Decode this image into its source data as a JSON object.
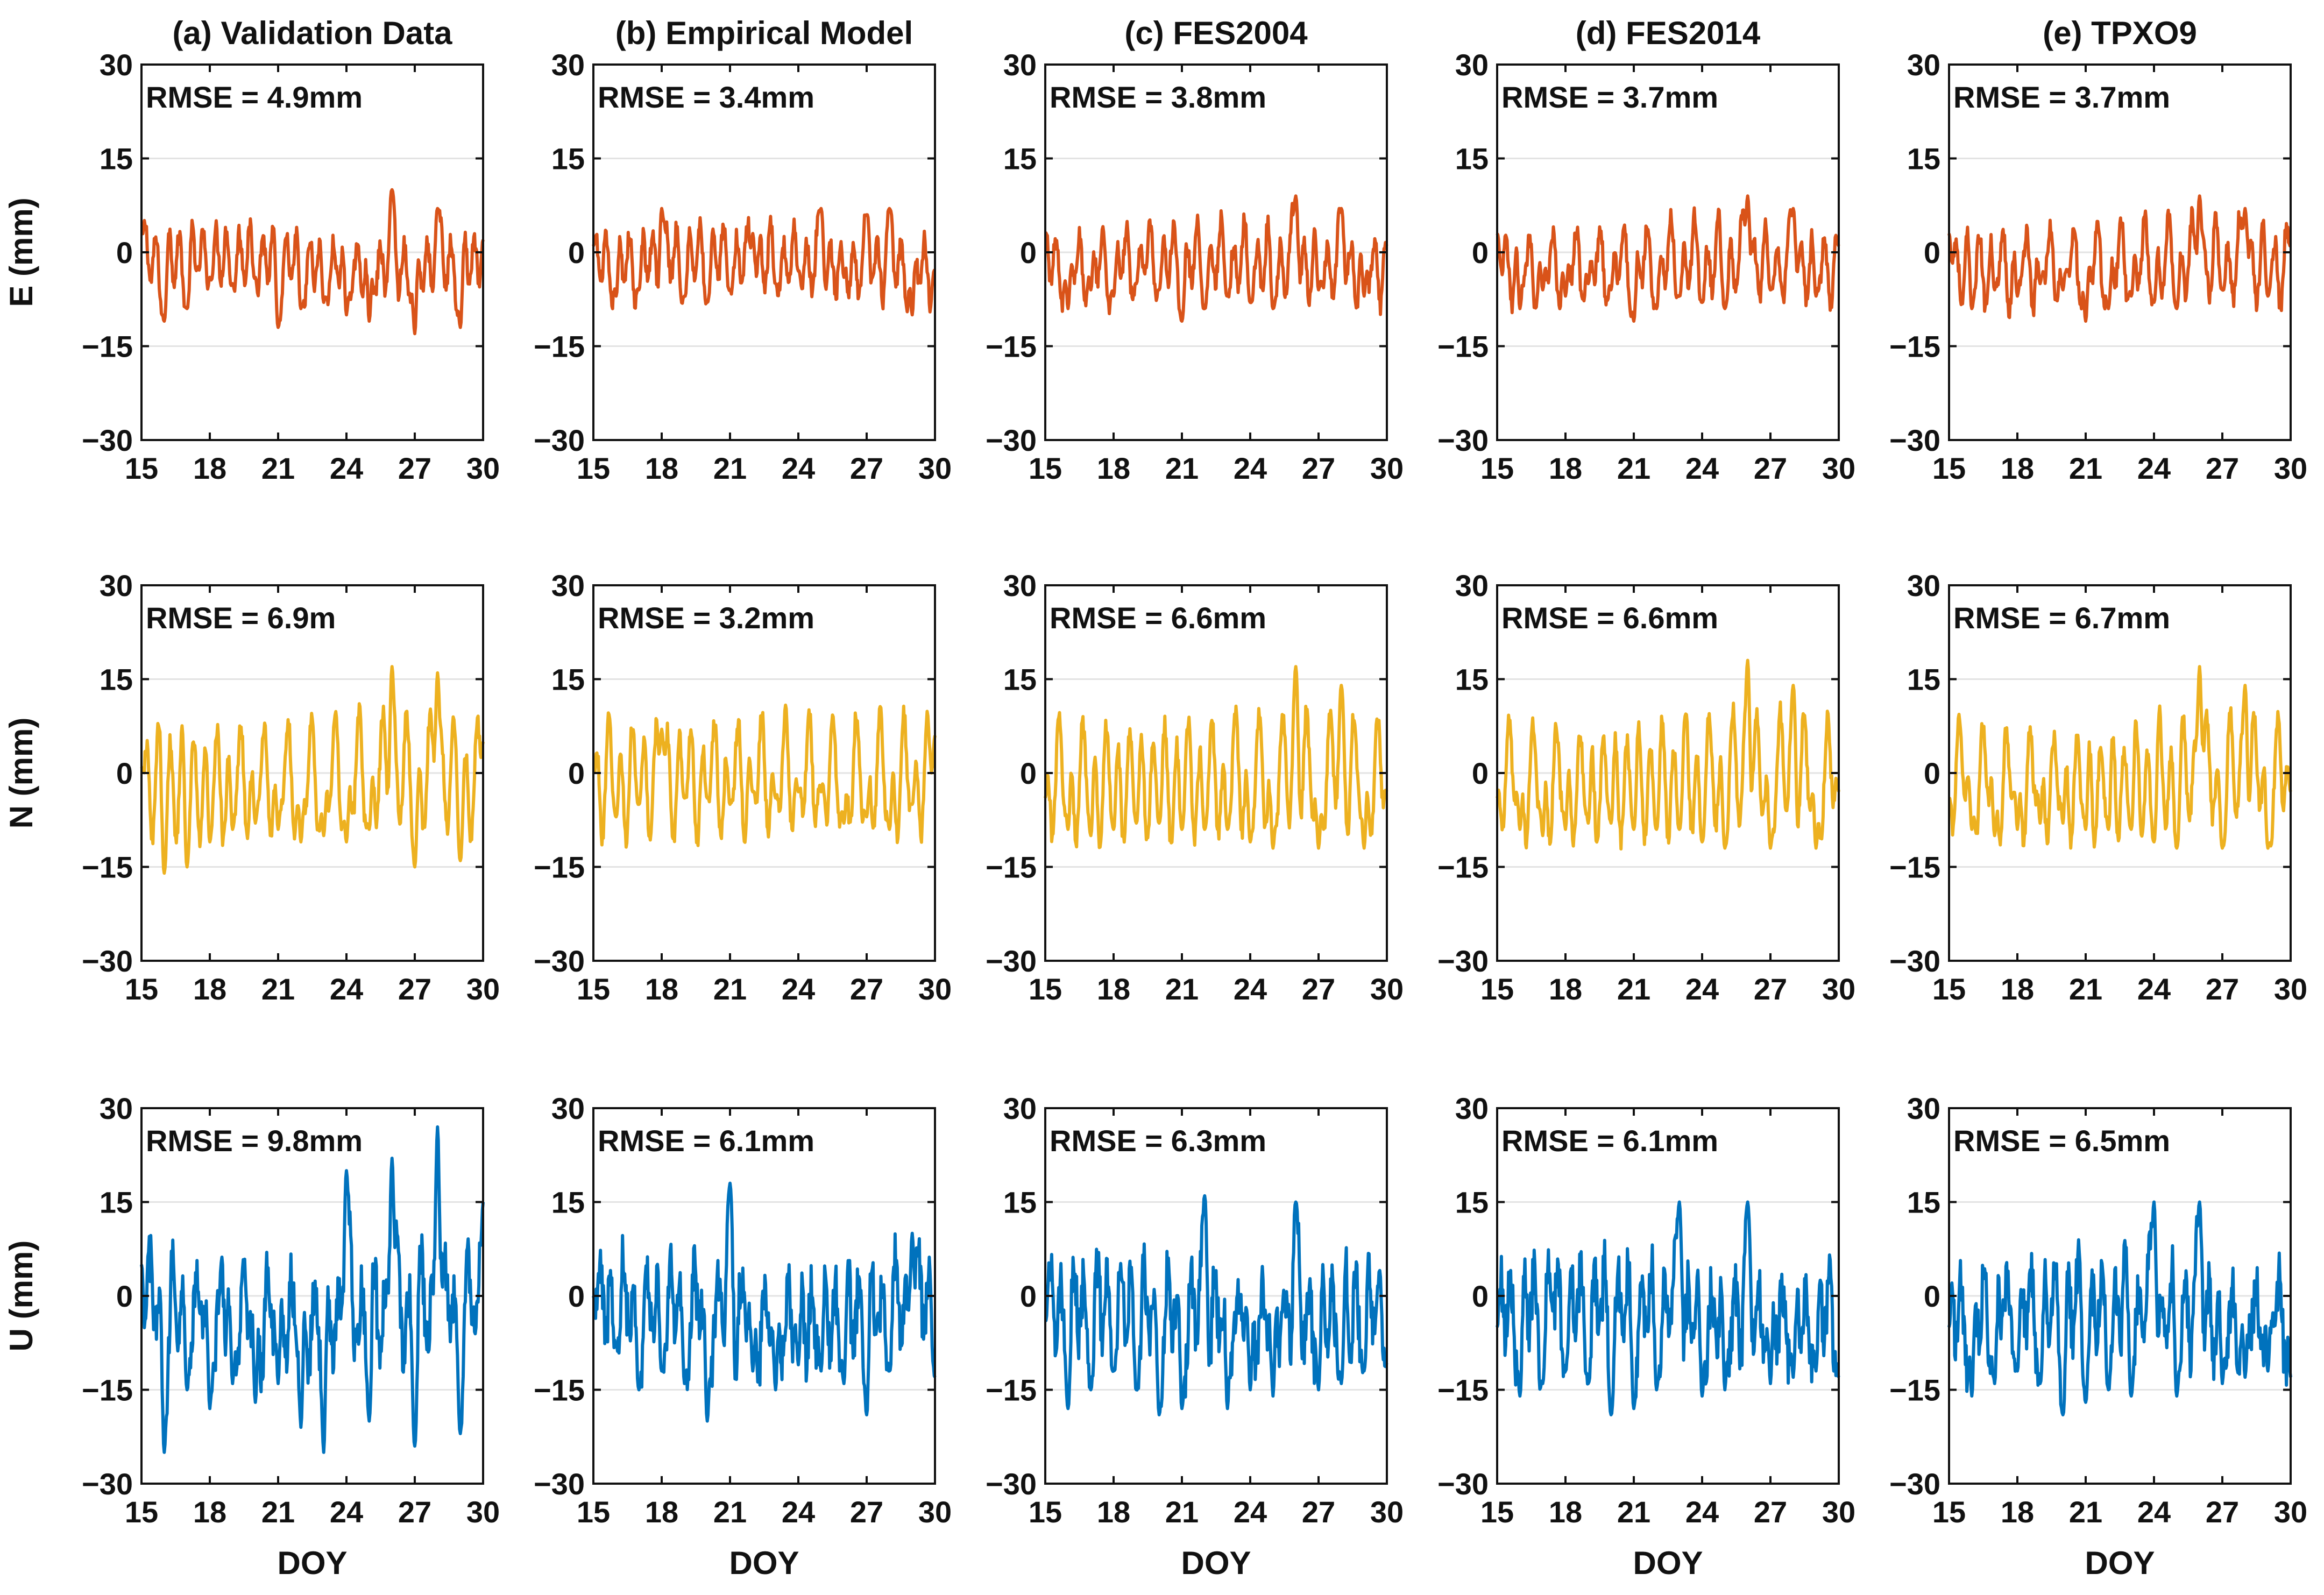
{
  "figure": {
    "xlabel": "DOY",
    "xticks": [
      15,
      18,
      21,
      24,
      27,
      30
    ],
    "yticks": [
      30,
      15,
      0,
      -15,
      -30
    ],
    "ytick_labels": [
      "30",
      "15",
      "0",
      "−15",
      "−30"
    ]
  },
  "chart_data": [
    {
      "type": "line",
      "title": "(a) Validation Data",
      "component": "E",
      "ylabel": "E (mm)",
      "rmse_label": "RMSE = 4.9mm",
      "xlim": [
        15,
        30
      ],
      "ylim": [
        -30,
        30
      ],
      "color": "#D95319",
      "series": [
        {
          "name": "E",
          "x": [
            15,
            16,
            17,
            18,
            19,
            20,
            21,
            22,
            23,
            24,
            25,
            26,
            27,
            28,
            29,
            30
          ],
          "values": [
            3,
            -11,
            -9,
            -4,
            -5,
            -4,
            -12,
            -9,
            -8,
            -10,
            -11,
            10,
            -13,
            7,
            -12,
            2
          ]
        }
      ]
    },
    {
      "type": "line",
      "title": "(b) Empirical Model",
      "component": "E",
      "ylabel": "E (mm)",
      "rmse_label": "RMSE = 3.4mm",
      "xlim": [
        15,
        30
      ],
      "ylim": [
        -30,
        30
      ],
      "color": "#D95319",
      "series": [
        {
          "name": "E",
          "x": [
            15,
            16,
            17,
            18,
            19,
            20,
            21,
            22,
            23,
            24,
            25,
            26,
            27,
            28,
            29,
            30
          ],
          "values": [
            1,
            -7,
            -6,
            7,
            -7,
            -8,
            -6,
            3,
            -5,
            -3,
            7,
            -4,
            6,
            7,
            -10,
            -3
          ]
        }
      ]
    },
    {
      "type": "line",
      "title": "(c) FES2004",
      "component": "E",
      "ylabel": "E (mm)",
      "rmse_label": "RMSE = 3.8mm",
      "xlim": [
        15,
        30
      ],
      "ylim": [
        -30,
        30
      ],
      "color": "#D95319",
      "series": [
        {
          "name": "E",
          "x": [
            15,
            16,
            17,
            18,
            19,
            20,
            21,
            22,
            23,
            24,
            25,
            26,
            27,
            28,
            29,
            30
          ],
          "values": [
            3,
            -9,
            -6,
            -7,
            -5,
            -6,
            -11,
            -9,
            -7,
            -8,
            -9,
            9,
            -6,
            7,
            -7,
            1
          ]
        }
      ]
    },
    {
      "type": "line",
      "title": "(d) FES2014",
      "component": "E",
      "ylabel": "E (mm)",
      "rmse_label": "RMSE = 3.7mm",
      "xlim": [
        15,
        30
      ],
      "ylim": [
        -30,
        30
      ],
      "color": "#D95319",
      "series": [
        {
          "name": "E",
          "x": [
            15,
            16,
            17,
            18,
            19,
            20,
            21,
            22,
            23,
            24,
            25,
            26,
            27,
            28,
            29,
            30
          ],
          "values": [
            3,
            -9,
            -6,
            -7,
            -5,
            -6,
            -11,
            -9,
            -7,
            -8,
            -9,
            9,
            -6,
            7,
            -7,
            1
          ]
        }
      ]
    },
    {
      "type": "line",
      "title": "(e) TPXO9",
      "component": "E",
      "ylabel": "E (mm)",
      "rmse_label": "RMSE = 3.7mm",
      "xlim": [
        15,
        30
      ],
      "ylim": [
        -30,
        30
      ],
      "color": "#D95319",
      "series": [
        {
          "name": "E",
          "x": [
            15,
            16,
            17,
            18,
            19,
            20,
            21,
            22,
            23,
            24,
            25,
            26,
            27,
            28,
            29,
            30
          ],
          "values": [
            3,
            -9,
            -6,
            -7,
            -5,
            -6,
            -11,
            -9,
            -7,
            -8,
            -9,
            9,
            -6,
            7,
            -7,
            1
          ]
        }
      ]
    },
    {
      "type": "line",
      "title": "",
      "component": "N",
      "ylabel": "N (mm)",
      "rmse_label": "RMSE = 6.9m",
      "xlim": [
        15,
        30
      ],
      "ylim": [
        -30,
        30
      ],
      "color": "#EDB120",
      "series": [
        {
          "name": "N",
          "x": [
            15,
            16,
            17,
            18,
            19,
            20,
            21,
            22,
            23,
            24,
            25,
            26,
            27,
            28,
            29,
            30
          ],
          "values": [
            1,
            -16,
            -15,
            -11,
            -9,
            -8,
            -9,
            -11,
            -10,
            -11,
            -9,
            17,
            -15,
            16,
            -14,
            5
          ]
        }
      ]
    },
    {
      "type": "line",
      "title": "",
      "component": "N",
      "ylabel": "N (mm)",
      "rmse_label": "RMSE = 3.2mm",
      "xlim": [
        15,
        30
      ],
      "ylim": [
        -30,
        30
      ],
      "color": "#EDB120",
      "series": [
        {
          "name": "N",
          "x": [
            15,
            16,
            17,
            18,
            19,
            20,
            21,
            22,
            23,
            24,
            25,
            26,
            27,
            28,
            29,
            30
          ],
          "values": [
            0,
            -7,
            -5,
            7,
            -4,
            -4,
            -5,
            -3,
            -4,
            -3,
            -3,
            -8,
            -7,
            -9,
            -5,
            6
          ]
        }
      ]
    },
    {
      "type": "line",
      "title": "",
      "component": "N",
      "ylabel": "N (mm)",
      "rmse_label": "RMSE = 6.6mm",
      "xlim": [
        15,
        30
      ],
      "ylim": [
        -30,
        30
      ],
      "color": "#EDB120",
      "series": [
        {
          "name": "N",
          "x": [
            15,
            16,
            17,
            18,
            19,
            20,
            21,
            22,
            23,
            24,
            25,
            26,
            27,
            28,
            29,
            30
          ],
          "values": [
            -4,
            -9,
            -10,
            -9,
            -8,
            -8,
            -9,
            -9,
            -9,
            -11,
            -12,
            17,
            -12,
            14,
            -12,
            -3
          ]
        }
      ]
    },
    {
      "type": "line",
      "title": "",
      "component": "N",
      "ylabel": "N (mm)",
      "rmse_label": "RMSE = 6.6mm",
      "xlim": [
        15,
        30
      ],
      "ylim": [
        -30,
        30
      ],
      "color": "#EDB120",
      "series": [
        {
          "name": "N",
          "x": [
            15,
            16,
            17,
            18,
            19,
            20,
            21,
            22,
            23,
            24,
            25,
            26,
            27,
            28,
            29,
            30
          ],
          "values": [
            -4,
            -9,
            -10,
            -9,
            -8,
            -8,
            -9,
            -9,
            -9,
            -11,
            -12,
            18,
            -12,
            14,
            -12,
            -3
          ]
        }
      ]
    },
    {
      "type": "line",
      "title": "",
      "component": "N",
      "ylabel": "N (mm)",
      "rmse_label": "RMSE = 6.7mm",
      "xlim": [
        15,
        30
      ],
      "ylim": [
        -30,
        30
      ],
      "color": "#EDB120",
      "series": [
        {
          "name": "N",
          "x": [
            15,
            16,
            17,
            18,
            19,
            20,
            21,
            22,
            23,
            24,
            25,
            26,
            27,
            28,
            29,
            30
          ],
          "values": [
            -4,
            -9,
            -10,
            -9,
            -8,
            -8,
            -9,
            -9,
            -9,
            -11,
            -12,
            17,
            -12,
            14,
            -12,
            -3
          ]
        }
      ]
    },
    {
      "type": "line",
      "title": "",
      "component": "U",
      "ylabel": "U (mm)",
      "rmse_label": "RMSE = 9.8mm",
      "xlim": [
        15,
        30
      ],
      "ylim": [
        -30,
        30
      ],
      "color": "#0072BD",
      "series": [
        {
          "name": "U",
          "x": [
            15,
            16,
            17,
            18,
            19,
            20,
            21,
            22,
            23,
            24,
            25,
            26,
            27,
            28,
            29,
            30
          ],
          "values": [
            5,
            -25,
            -15,
            -18,
            -14,
            -17,
            -14,
            -21,
            -25,
            20,
            -20,
            22,
            -24,
            27,
            -22,
            15
          ]
        }
      ]
    },
    {
      "type": "line",
      "title": "",
      "component": "U",
      "ylabel": "U (mm)",
      "rmse_label": "RMSE = 6.1mm",
      "xlim": [
        15,
        30
      ],
      "ylim": [
        -30,
        30
      ],
      "color": "#0072BD",
      "series": [
        {
          "name": "U",
          "x": [
            15,
            16,
            17,
            18,
            19,
            20,
            21,
            22,
            23,
            24,
            25,
            26,
            27,
            28,
            29,
            30
          ],
          "values": [
            0,
            -8,
            -15,
            -12,
            -14,
            -20,
            18,
            -12,
            -15,
            -11,
            -12,
            -14,
            -19,
            -12,
            10,
            -13
          ]
        }
      ]
    },
    {
      "type": "line",
      "title": "",
      "component": "U",
      "ylabel": "U (mm)",
      "rmse_label": "RMSE = 6.3mm",
      "xlim": [
        15,
        30
      ],
      "ylim": [
        -30,
        30
      ],
      "color": "#0072BD",
      "series": [
        {
          "name": "U",
          "x": [
            15,
            16,
            17,
            18,
            19,
            20,
            21,
            22,
            23,
            24,
            25,
            26,
            27,
            28,
            29,
            30
          ],
          "values": [
            -4,
            -18,
            -15,
            -12,
            -15,
            -19,
            -18,
            16,
            -18,
            -15,
            -16,
            15,
            -15,
            -14,
            -12,
            -11
          ]
        }
      ]
    },
    {
      "type": "line",
      "title": "",
      "component": "U",
      "ylabel": "U (mm)",
      "rmse_label": "RMSE = 6.1mm",
      "xlim": [
        15,
        30
      ],
      "ylim": [
        -30,
        30
      ],
      "color": "#0072BD",
      "series": [
        {
          "name": "U",
          "x": [
            15,
            16,
            17,
            18,
            19,
            20,
            21,
            22,
            23,
            24,
            25,
            26,
            27,
            28,
            29,
            30
          ],
          "values": [
            -5,
            -16,
            -14,
            -12,
            -14,
            -19,
            -18,
            -15,
            15,
            -16,
            -15,
            15,
            -14,
            -13,
            -12,
            -13
          ]
        }
      ]
    },
    {
      "type": "line",
      "title": "",
      "component": "U",
      "ylabel": "U (mm)",
      "rmse_label": "RMSE = 6.5mm",
      "xlim": [
        15,
        30
      ],
      "ylim": [
        -30,
        30
      ],
      "color": "#0072BD",
      "series": [
        {
          "name": "U",
          "x": [
            15,
            16,
            17,
            18,
            19,
            20,
            21,
            22,
            23,
            24,
            25,
            26,
            27,
            28,
            29,
            30
          ],
          "values": [
            -5,
            -16,
            -14,
            -12,
            -14,
            -19,
            -17,
            -15,
            -16,
            15,
            -16,
            15,
            -14,
            -13,
            -12,
            -13
          ]
        }
      ]
    }
  ]
}
